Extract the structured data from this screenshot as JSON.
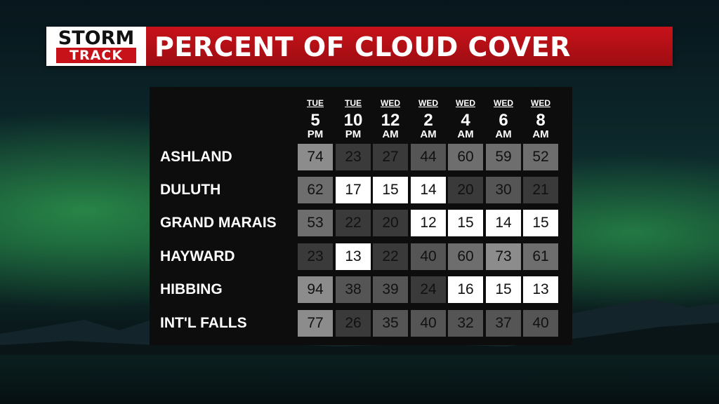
{
  "logo": {
    "line1": "STORM",
    "line2": "TRACK"
  },
  "title": "PERCENT OF CLOUD COVER",
  "columns": [
    {
      "day": "TUE",
      "hour": "5",
      "ampm": "PM"
    },
    {
      "day": "TUE",
      "hour": "10",
      "ampm": "PM"
    },
    {
      "day": "WED",
      "hour": "12",
      "ampm": "AM"
    },
    {
      "day": "WED",
      "hour": "2",
      "ampm": "AM"
    },
    {
      "day": "WED",
      "hour": "4",
      "ampm": "AM"
    },
    {
      "day": "WED",
      "hour": "6",
      "ampm": "AM"
    },
    {
      "day": "WED",
      "hour": "8",
      "ampm": "AM"
    }
  ],
  "rows": [
    {
      "city": "ASHLAND",
      "values": [
        74,
        23,
        27,
        44,
        60,
        59,
        52
      ]
    },
    {
      "city": "DULUTH",
      "values": [
        62,
        17,
        15,
        14,
        20,
        30,
        21
      ]
    },
    {
      "city": "GRAND MARAIS",
      "values": [
        53,
        22,
        20,
        12,
        15,
        14,
        15
      ]
    },
    {
      "city": "HAYWARD",
      "values": [
        23,
        13,
        22,
        40,
        60,
        73,
        61
      ]
    },
    {
      "city": "HIBBING",
      "values": [
        94,
        38,
        39,
        24,
        16,
        15,
        13
      ]
    },
    {
      "city": "INT'L FALLS",
      "values": [
        77,
        26,
        35,
        40,
        32,
        37,
        40
      ]
    }
  ],
  "colors": {
    "banner_red": "#c8121a",
    "clear_cell": "#ffffff",
    "cloudy_cell": "#3c3c3c",
    "panel": "#0d0d0d"
  }
}
